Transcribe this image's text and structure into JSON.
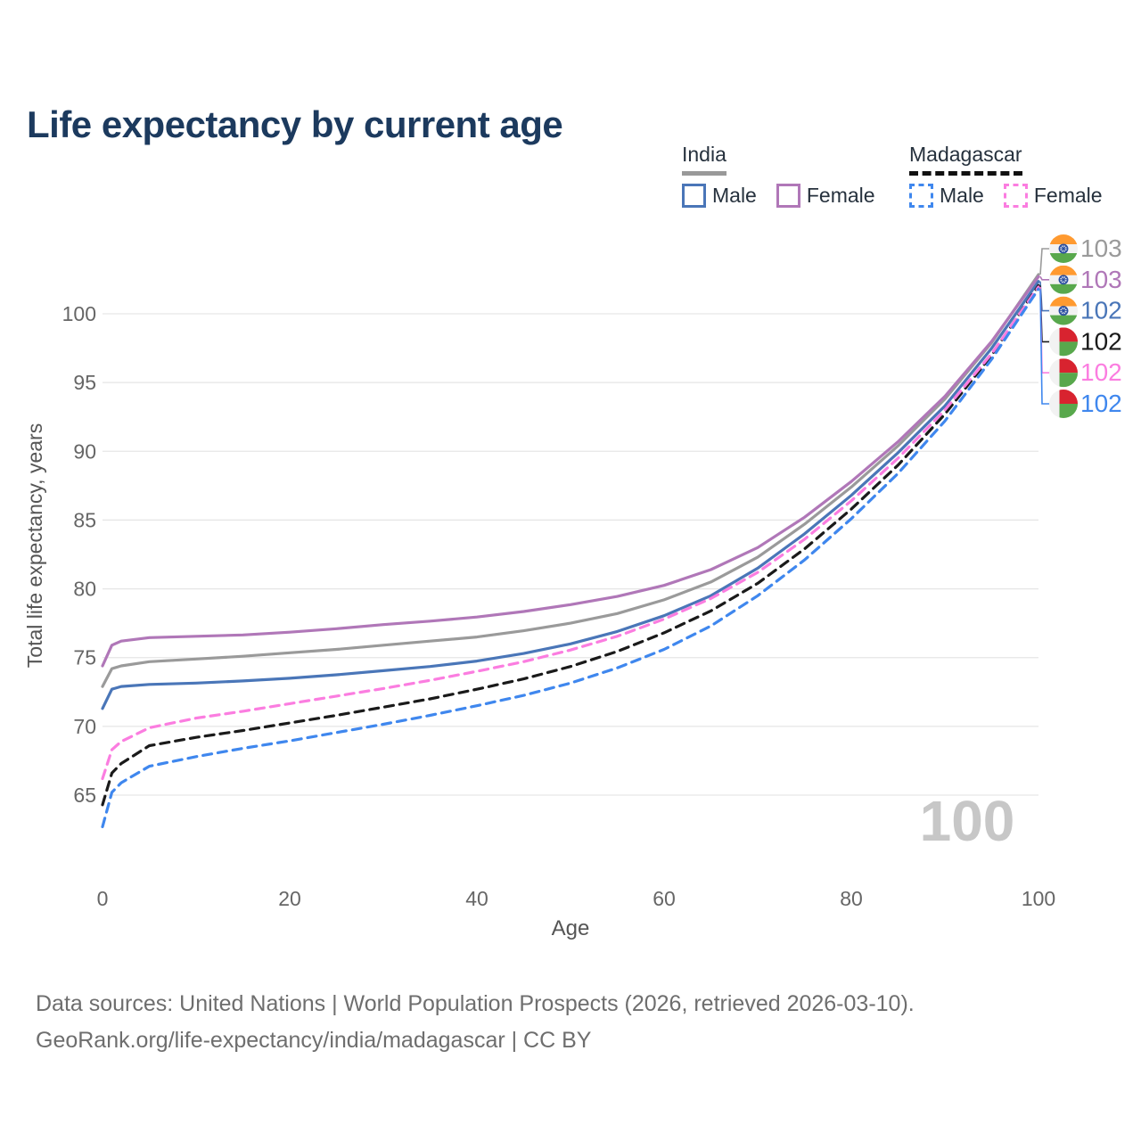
{
  "title": "Life expectancy by current age",
  "legend": {
    "groups": [
      {
        "country": "India",
        "line_style": "solid",
        "underline_color": "#999999",
        "items": [
          {
            "label": "Male",
            "color": "#4a76b8",
            "dashed": false
          },
          {
            "label": "Female",
            "color": "#b077b8",
            "dashed": false
          }
        ]
      },
      {
        "country": "Madagascar",
        "line_style": "dashed",
        "underline_color": "#111111",
        "items": [
          {
            "label": "Male",
            "color": "#3f87ee",
            "dashed": true
          },
          {
            "label": "Female",
            "color": "#fb7de0",
            "dashed": true
          }
        ]
      }
    ]
  },
  "watermark": "100",
  "footer": {
    "line1": "Data sources: United Nations | World Population Prospects (2026, retrieved 2026-03-10).",
    "line2": "GeoRank.org/life-expectancy/india/madagascar | CC BY"
  },
  "chart_data": {
    "type": "line",
    "title": "Life expectancy by current age",
    "xlabel": "Age",
    "ylabel": "Total life expectancy, years",
    "xlim": [
      0,
      100
    ],
    "ylim": [
      65,
      100
    ],
    "x_ticks": [
      0,
      20,
      40,
      60,
      80,
      100
    ],
    "y_ticks": [
      65,
      70,
      75,
      80,
      85,
      90,
      95,
      100
    ],
    "grid": "horizontal-only",
    "grid_color": "#e6e6e6",
    "tick_color": "#666666",
    "axis_title_color": "#555555",
    "watermark_color": "#c7c7c7",
    "x": [
      0,
      1,
      2,
      5,
      10,
      15,
      20,
      25,
      30,
      35,
      40,
      45,
      50,
      55,
      60,
      65,
      70,
      75,
      80,
      85,
      90,
      95,
      100
    ],
    "series": [
      {
        "name": "India — Both sexes",
        "country": "India",
        "sex": "both",
        "color": "#9a9a9a",
        "dashed": false,
        "end_label": "103",
        "values": [
          72.9,
          74.2,
          74.4,
          74.7,
          74.9,
          75.1,
          75.35,
          75.6,
          75.9,
          76.2,
          76.5,
          76.95,
          77.5,
          78.2,
          79.2,
          80.5,
          82.3,
          84.7,
          87.4,
          90.4,
          93.8,
          97.9,
          102.85
        ]
      },
      {
        "name": "India — Female",
        "country": "India",
        "sex": "female",
        "color": "#b077b8",
        "dashed": false,
        "end_label": "103",
        "values": [
          74.4,
          75.9,
          76.2,
          76.45,
          76.55,
          76.65,
          76.85,
          77.1,
          77.4,
          77.65,
          77.95,
          78.35,
          78.85,
          79.45,
          80.25,
          81.4,
          83.0,
          85.2,
          87.8,
          90.7,
          94.0,
          98.0,
          102.7
        ]
      },
      {
        "name": "India — Male",
        "country": "India",
        "sex": "male",
        "color": "#4a76b8",
        "dashed": false,
        "end_label": "102",
        "values": [
          71.3,
          72.7,
          72.9,
          73.05,
          73.15,
          73.3,
          73.5,
          73.75,
          74.05,
          74.35,
          74.75,
          75.3,
          76.0,
          76.9,
          78.05,
          79.5,
          81.5,
          84.0,
          86.8,
          89.9,
          93.3,
          97.5,
          102.35
        ]
      },
      {
        "name": "Madagascar — Both sexes",
        "country": "Madagascar",
        "sex": "both",
        "color": "#1a1a1a",
        "dashed": true,
        "end_label": "102",
        "values": [
          64.3,
          66.6,
          67.3,
          68.6,
          69.2,
          69.7,
          70.25,
          70.8,
          71.4,
          72.0,
          72.7,
          73.45,
          74.35,
          75.45,
          76.8,
          78.4,
          80.4,
          82.9,
          85.8,
          89.0,
          92.7,
          97.0,
          102.05
        ]
      },
      {
        "name": "Madagascar — Female",
        "country": "Madagascar",
        "sex": "female",
        "color": "#fb7de0",
        "dashed": true,
        "end_label": "102",
        "values": [
          66.2,
          68.3,
          68.9,
          69.9,
          70.6,
          71.1,
          71.65,
          72.2,
          72.75,
          73.35,
          74.0,
          74.7,
          75.55,
          76.55,
          77.8,
          79.3,
          81.2,
          83.6,
          86.4,
          89.5,
          93.0,
          97.1,
          101.95
        ]
      },
      {
        "name": "Madagascar — Male",
        "country": "Madagascar",
        "sex": "male",
        "color": "#3f87ee",
        "dashed": true,
        "end_label": "102",
        "values": [
          62.7,
          65.2,
          65.9,
          67.1,
          67.8,
          68.4,
          68.95,
          69.55,
          70.15,
          70.8,
          71.5,
          72.25,
          73.15,
          74.25,
          75.6,
          77.3,
          79.5,
          82.1,
          85.1,
          88.4,
          92.2,
          96.7,
          101.8
        ]
      }
    ],
    "legend_position": "top-right",
    "end_label_values": [
      "103",
      "103",
      "102",
      "102",
      "102",
      "102"
    ]
  }
}
